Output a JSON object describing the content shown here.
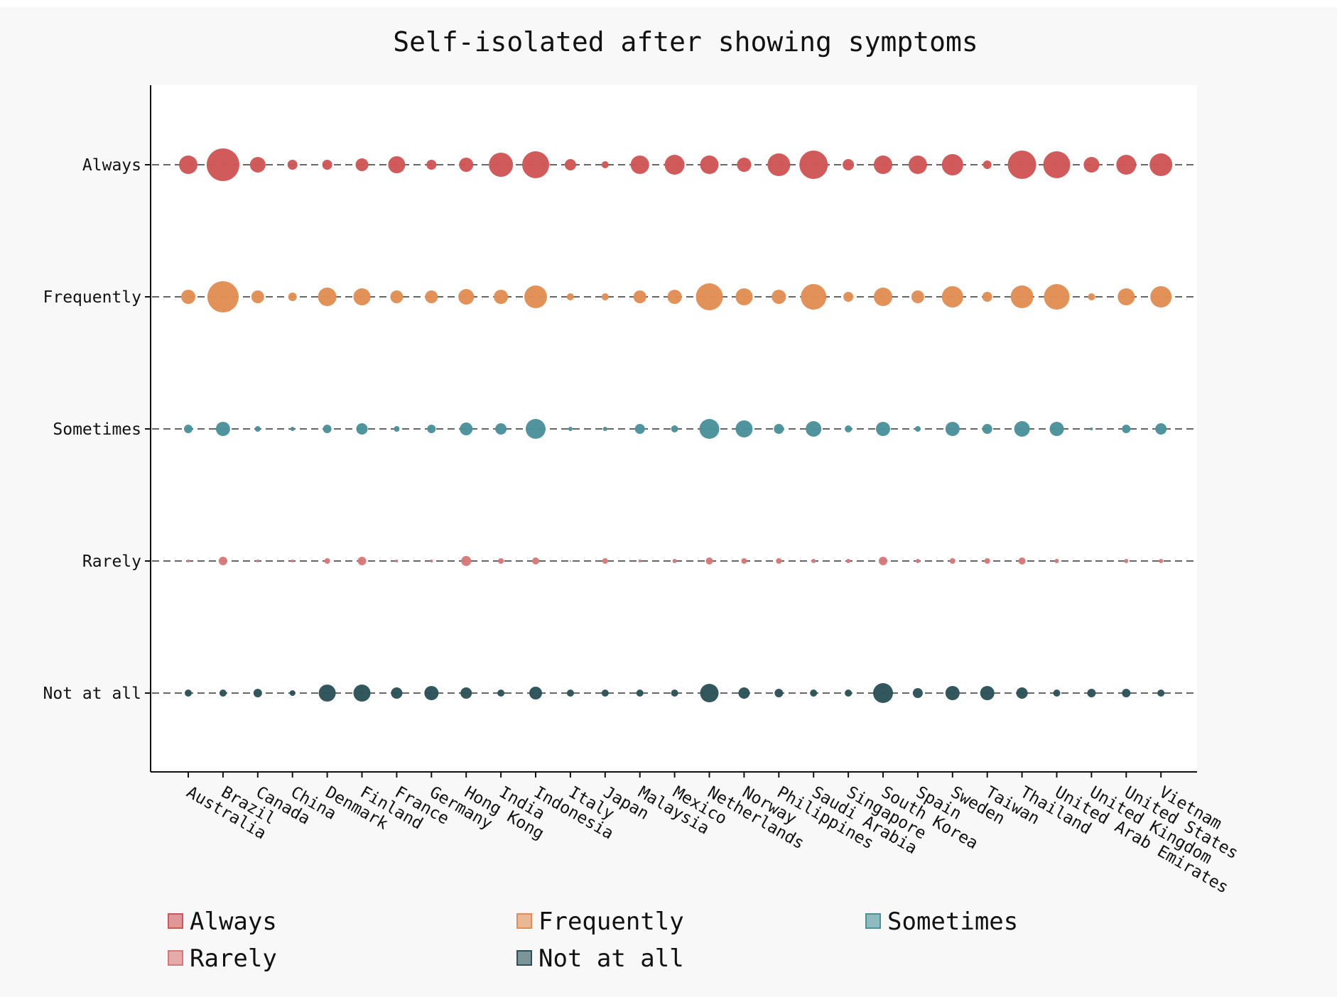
{
  "chart_data": {
    "type": "scatter",
    "title": "Self-isolated after showing symptoms",
    "xlabel": "",
    "ylabel": "",
    "categories": [
      "Australia",
      "Brazil",
      "Canada",
      "China",
      "Denmark",
      "Finland",
      "France",
      "Germany",
      "Hong Kong",
      "India",
      "Indonesia",
      "Italy",
      "Japan",
      "Malaysia",
      "Mexico",
      "Netherlands",
      "Norway",
      "Philippines",
      "Saudi Arabia",
      "Singapore",
      "South Korea",
      "Spain",
      "Sweden",
      "Taiwan",
      "Thailand",
      "United Arab Emirates",
      "United Kingdom",
      "United States",
      "Vietnam"
    ],
    "y_levels": [
      "Always",
      "Frequently",
      "Sometimes",
      "Rarely",
      "Not at all"
    ],
    "size_encodes": "relative frequency of response (estimated)",
    "grid": "horizontal dashed lines at each level",
    "legend": "bottom",
    "series": [
      {
        "name": "Always",
        "color": "#cf5656",
        "values": [
          13,
          23,
          11,
          7,
          7,
          9,
          12,
          7,
          10,
          17,
          19,
          8,
          5,
          13,
          14,
          13,
          10,
          16,
          20,
          8,
          13,
          13,
          15,
          6,
          20,
          19,
          11,
          14,
          16
        ]
      },
      {
        "name": "Frequently",
        "color": "#e18d53",
        "values": [
          10,
          22,
          9,
          6,
          13,
          12,
          9,
          9,
          11,
          10,
          16,
          5,
          5,
          9,
          10,
          19,
          12,
          10,
          18,
          7,
          13,
          9,
          15,
          7,
          16,
          18,
          5,
          12,
          15
        ]
      },
      {
        "name": "Sometimes",
        "color": "#4a929a",
        "values": [
          6,
          10,
          4,
          3,
          6,
          8,
          4,
          6,
          9,
          8,
          14,
          3,
          3,
          7,
          5,
          14,
          12,
          7,
          11,
          5,
          10,
          4,
          10,
          7,
          11,
          10,
          2,
          6,
          8
        ]
      },
      {
        "name": "Rarely",
        "color": "#d87878",
        "values": [
          2,
          6,
          2,
          2,
          4,
          6,
          2,
          2,
          7,
          4,
          5,
          1,
          4,
          2,
          3,
          5,
          4,
          4,
          3,
          3,
          6,
          3,
          4,
          4,
          5,
          3,
          1,
          3,
          3
        ]
      },
      {
        "name": "Not at all",
        "color": "#2b5258",
        "values": [
          5,
          5,
          6,
          4,
          12,
          12,
          8,
          10,
          8,
          5,
          9,
          5,
          5,
          5,
          5,
          13,
          8,
          6,
          5,
          5,
          14,
          7,
          10,
          10,
          8,
          5,
          6,
          6,
          5
        ]
      }
    ]
  }
}
